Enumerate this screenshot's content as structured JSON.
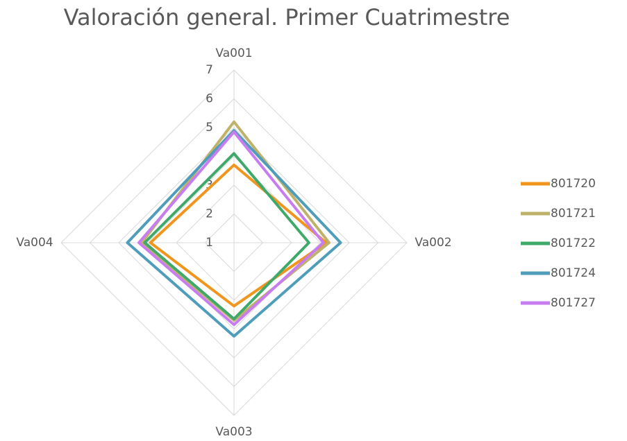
{
  "chart_data": {
    "type": "radar",
    "title": "Valoración general. Primer Cuatrimestre",
    "categories": [
      "Va001",
      "Va002",
      "Va003",
      "Va004"
    ],
    "series": [
      {
        "name": "801720",
        "color": "#f0961e",
        "values": [
          3.7,
          4.2,
          3.2,
          3.9
        ]
      },
      {
        "name": "801721",
        "color": "#bfb26a",
        "values": [
          5.2,
          4.3,
          3.7,
          4.2
        ]
      },
      {
        "name": "801722",
        "color": "#3fa86b",
        "values": [
          4.1,
          3.6,
          3.65,
          4.1
        ]
      },
      {
        "name": "801724",
        "color": "#4f9dbb",
        "values": [
          4.9,
          4.7,
          4.25,
          4.7
        ]
      },
      {
        "name": "801727",
        "color": "#c77cf0",
        "values": [
          4.85,
          4.1,
          3.85,
          4.3
        ]
      }
    ],
    "rlim": [
      1,
      7
    ],
    "rticks": [
      1,
      2,
      3,
      4,
      5,
      6,
      7
    ],
    "grid": true,
    "legend": "right"
  }
}
